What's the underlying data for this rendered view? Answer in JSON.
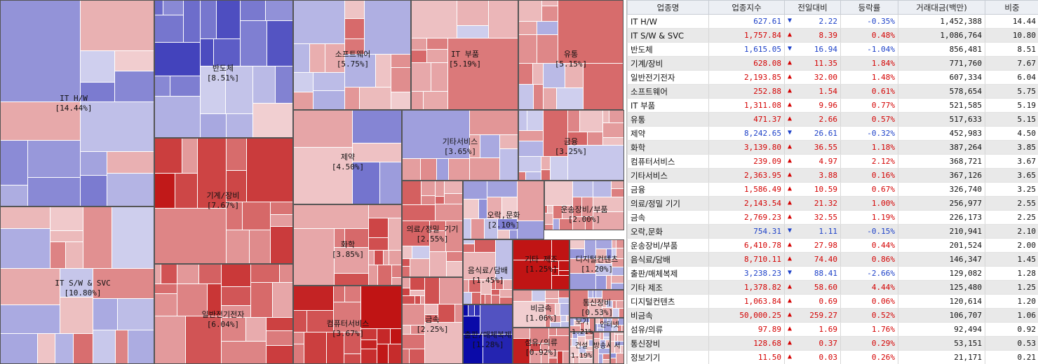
{
  "colors": {
    "up": "#d40000",
    "down": "#1c40c8",
    "strong_up": "#c01414",
    "strong_down": "#0a0aa8"
  },
  "treemap": {
    "sectors": [
      {
        "label": "IT H/W",
        "pct": "[14.44%]",
        "change": -0.35
      },
      {
        "label": "IT S/W & SVC",
        "pct": "[10.80%]",
        "change": 0.48
      },
      {
        "label": "반도체",
        "pct": "[8.51%]",
        "change": -1.04
      },
      {
        "label": "기계/장비",
        "pct": "[7.67%]",
        "change": 1.84
      },
      {
        "label": "일반전기전자",
        "pct": "[6.04%]",
        "change": 1.48
      },
      {
        "label": "소프트웨어",
        "pct": "[5.75%]",
        "change": 0.61
      },
      {
        "label": "IT 부품",
        "pct": "[5.19%]",
        "change": 0.77
      },
      {
        "label": "유통",
        "pct": "[5.15%]",
        "change": 0.57
      },
      {
        "label": "제약",
        "pct": "[4.50%]",
        "change": -0.32
      },
      {
        "label": "화학",
        "pct": "[3.85%]",
        "change": 1.18
      },
      {
        "label": "컴퓨터서비스",
        "pct": "[3.67%]",
        "change": 2.12
      },
      {
        "label": "기타서비스",
        "pct": "[3.65%]",
        "change": 0.16
      },
      {
        "label": "금융",
        "pct": "[3.25%]",
        "change": 0.67
      },
      {
        "label": "의료/정밀 기기",
        "pct": "[2.55%]",
        "change": 1.0
      },
      {
        "label": "금속",
        "pct": "[2.25%]",
        "change": 1.19
      },
      {
        "label": "오락,문화",
        "pct": "[2.10%]",
        "change": -0.15
      },
      {
        "label": "운송장비/부품",
        "pct": "[2.00%]",
        "change": 0.44
      },
      {
        "label": "음식료/담배",
        "pct": "[1.45%]",
        "change": 0.86
      },
      {
        "label": "출판/매체복제",
        "pct": "[1.28%]",
        "change": -2.66
      },
      {
        "label": "기타 제조",
        "pct": "[1.25%]",
        "change": 4.44
      },
      {
        "label": "디지털컨텐츠",
        "pct": "[1.20%]",
        "change": 0.06
      },
      {
        "label": "비금속",
        "pct": "[1.06%]",
        "change": 0.52
      },
      {
        "label": "섬유/의류",
        "pct": "[0.92%]",
        "change": 1.76
      },
      {
        "label": "통신장비",
        "pct": "[0.53%]",
        "change": 0.29
      },
      {
        "label": "보기",
        "pct": "1.21%",
        "change": 0.26
      },
      {
        "label": "인터넷",
        "pct": "",
        "change": 0.1
      },
      {
        "label": "건설",
        "pct": "1.19%",
        "change": 0.3
      },
      {
        "label": "방송서",
        "pct": "",
        "change": 0.2
      },
      {
        "label": "서",
        "pct": "",
        "change": 0.1
      }
    ]
  },
  "table": {
    "headers": [
      "업종명",
      "업종지수",
      "전일대비",
      "등락률",
      "거래대금(백만)",
      "비중"
    ],
    "rows": [
      {
        "name": "IT H/W",
        "index": "627.61",
        "dir": "down",
        "diff": "2.22",
        "rate": "-0.35%",
        "volume": "1,452,388",
        "weight": "14.44"
      },
      {
        "name": "IT S/W & SVC",
        "index": "1,757.84",
        "dir": "up",
        "diff": "8.39",
        "rate": "0.48%",
        "volume": "1,086,764",
        "weight": "10.80"
      },
      {
        "name": "반도체",
        "index": "1,615.05",
        "dir": "down",
        "diff": "16.94",
        "rate": "-1.04%",
        "volume": "856,481",
        "weight": "8.51"
      },
      {
        "name": "기계/장비",
        "index": "628.08",
        "dir": "up",
        "diff": "11.35",
        "rate": "1.84%",
        "volume": "771,760",
        "weight": "7.67"
      },
      {
        "name": "일반전기전자",
        "index": "2,193.85",
        "dir": "up",
        "diff": "32.00",
        "rate": "1.48%",
        "volume": "607,334",
        "weight": "6.04"
      },
      {
        "name": "소프트웨어",
        "index": "252.88",
        "dir": "up",
        "diff": "1.54",
        "rate": "0.61%",
        "volume": "578,654",
        "weight": "5.75"
      },
      {
        "name": "IT 부품",
        "index": "1,311.08",
        "dir": "up",
        "diff": "9.96",
        "rate": "0.77%",
        "volume": "521,585",
        "weight": "5.19"
      },
      {
        "name": "유통",
        "index": "471.37",
        "dir": "up",
        "diff": "2.66",
        "rate": "0.57%",
        "volume": "517,633",
        "weight": "5.15"
      },
      {
        "name": "제약",
        "index": "8,242.65",
        "dir": "down",
        "diff": "26.61",
        "rate": "-0.32%",
        "volume": "452,983",
        "weight": "4.50"
      },
      {
        "name": "화학",
        "index": "3,139.80",
        "dir": "up",
        "diff": "36.55",
        "rate": "1.18%",
        "volume": "387,264",
        "weight": "3.85"
      },
      {
        "name": "컴퓨터서비스",
        "index": "239.09",
        "dir": "up",
        "diff": "4.97",
        "rate": "2.12%",
        "volume": "368,721",
        "weight": "3.67"
      },
      {
        "name": "기타서비스",
        "index": "2,363.95",
        "dir": "up",
        "diff": "3.88",
        "rate": "0.16%",
        "volume": "367,126",
        "weight": "3.65"
      },
      {
        "name": "금융",
        "index": "1,586.49",
        "dir": "up",
        "diff": "10.59",
        "rate": "0.67%",
        "volume": "326,740",
        "weight": "3.25"
      },
      {
        "name": "의료/정밀 기기",
        "index": "2,143.54",
        "dir": "up",
        "diff": "21.32",
        "rate": "1.00%",
        "volume": "256,977",
        "weight": "2.55"
      },
      {
        "name": "금속",
        "index": "2,769.23",
        "dir": "up",
        "diff": "32.55",
        "rate": "1.19%",
        "volume": "226,173",
        "weight": "2.25"
      },
      {
        "name": "오락,문화",
        "index": "754.31",
        "dir": "down",
        "diff": "1.11",
        "rate": "-0.15%",
        "volume": "210,941",
        "weight": "2.10"
      },
      {
        "name": "운송장비/부품",
        "index": "6,410.78",
        "dir": "up",
        "diff": "27.98",
        "rate": "0.44%",
        "volume": "201,524",
        "weight": "2.00"
      },
      {
        "name": "음식료/담배",
        "index": "8,710.11",
        "dir": "up",
        "diff": "74.40",
        "rate": "0.86%",
        "volume": "146,347",
        "weight": "1.45"
      },
      {
        "name": "출판/매체복제",
        "index": "3,238.23",
        "dir": "down",
        "diff": "88.41",
        "rate": "-2.66%",
        "volume": "129,082",
        "weight": "1.28"
      },
      {
        "name": "기타 제조",
        "index": "1,378.82",
        "dir": "up",
        "diff": "58.60",
        "rate": "4.44%",
        "volume": "125,480",
        "weight": "1.25"
      },
      {
        "name": "디지털컨텐츠",
        "index": "1,063.84",
        "dir": "up",
        "diff": "0.69",
        "rate": "0.06%",
        "volume": "120,614",
        "weight": "1.20"
      },
      {
        "name": "비금속",
        "index": "50,000.25",
        "dir": "up",
        "diff": "259.27",
        "rate": "0.52%",
        "volume": "106,707",
        "weight": "1.06"
      },
      {
        "name": "섬유/의류",
        "index": "97.89",
        "dir": "up",
        "diff": "1.69",
        "rate": "1.76%",
        "volume": "92,494",
        "weight": "0.92"
      },
      {
        "name": "통신장비",
        "index": "128.68",
        "dir": "up",
        "diff": "0.37",
        "rate": "0.29%",
        "volume": "53,151",
        "weight": "0.53"
      },
      {
        "name": "정보기기",
        "index": "11.50",
        "dir": "up",
        "diff": "0.03",
        "rate": "0.26%",
        "volume": "21,171",
        "weight": "0.21"
      }
    ]
  }
}
